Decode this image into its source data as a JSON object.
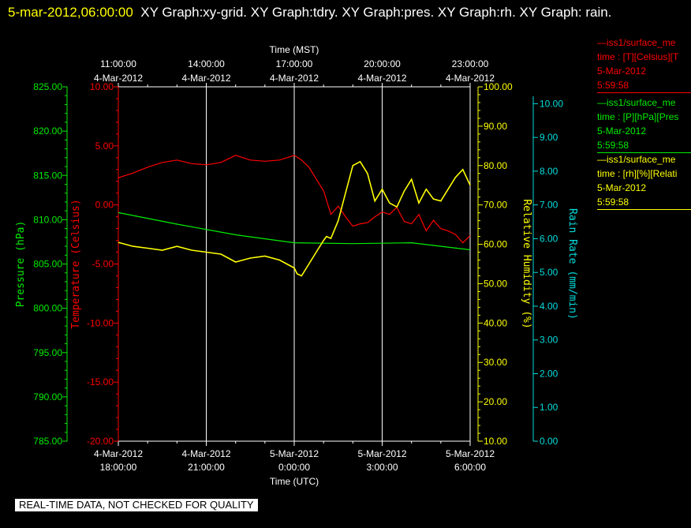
{
  "header": {
    "date_label": "5-mar-2012,06:00:00",
    "graph_list": "XY Graph:xy-grid.  XY Graph:tdry.  XY Graph:pres.  XY Graph:rh.  XY Graph: rain."
  },
  "footer": {
    "notice": "REAL-TIME DATA, NOT CHECKED FOR QUALITY"
  },
  "legend": [
    {
      "color": "#ff0000",
      "line1": "—iss1/surface_me",
      "line2": "time : [T][Celsius][T",
      "line3": "5-Mar-2012",
      "line4": "5:59:58"
    },
    {
      "color": "#00ee00",
      "line1": "—iss1/surface_me",
      "line2": "time : [P][hPa][Pres",
      "line3": "5-Mar-2012",
      "line4": "5:59:58"
    },
    {
      "color": "#ffff00",
      "line1": "—iss1/surface_me",
      "line2": "time : [rh][%][Relati",
      "line3": "5-Mar-2012",
      "line4": "5:59:58"
    }
  ],
  "chart_data": {
    "type": "line",
    "grid": true,
    "x_top": {
      "label": "Time (MST)",
      "ticks": [
        {
          "l1": "11:00:00",
          "l2": "4-Mar-2012"
        },
        {
          "l1": "14:00:00",
          "l2": "4-Mar-2012"
        },
        {
          "l1": "17:00:00",
          "l2": "4-Mar-2012"
        },
        {
          "l1": "20:00:00",
          "l2": "4-Mar-2012"
        },
        {
          "l1": "23:00:00",
          "l2": "4-Mar-2012"
        }
      ]
    },
    "x_bottom": {
      "label": "Time (UTC)",
      "range": [
        "2012-03-04 18:00",
        "2012-03-05 06:00"
      ],
      "ticks": [
        {
          "l1": "4-Mar-2012",
          "l2": "18:00:00"
        },
        {
          "l1": "4-Mar-2012",
          "l2": "21:00:00"
        },
        {
          "l1": "5-Mar-2012",
          "l2": "0:00:00"
        },
        {
          "l1": "5-Mar-2012",
          "l2": "3:00:00"
        },
        {
          "l1": "5-Mar-2012",
          "l2": "6:00:00"
        }
      ]
    },
    "axes": [
      {
        "id": "pres",
        "label": "Pressure (hPa)",
        "color": "#00ee00",
        "range": [
          785,
          825
        ],
        "ticks": [
          "785.00",
          "790.00",
          "795.00",
          "800.00",
          "805.00",
          "810.00",
          "815.00",
          "820.00",
          "825.00"
        ]
      },
      {
        "id": "tdry",
        "label": "Temperature (Celsius)",
        "color": "#ff0000",
        "range": [
          -20,
          10
        ],
        "ticks": [
          "-20.00",
          "-15.00",
          "-10.00",
          "-5.00",
          "0.00",
          "5.00",
          "10.00"
        ]
      },
      {
        "id": "rh",
        "label": "Relative Humidity (%)",
        "color": "#ffff00",
        "range": [
          10,
          100
        ],
        "ticks": [
          "10.00",
          "20.00",
          "30.00",
          "40.00",
          "50.00",
          "60.00",
          "70.00",
          "80.00",
          "90.00",
          "100.00"
        ]
      },
      {
        "id": "rain",
        "label": "Rain Rate (mm/min)",
        "color": "#00dddd",
        "range": [
          0,
          10.5
        ],
        "ticks": [
          "0.00",
          "1.00",
          "2.00",
          "3.00",
          "4.00",
          "5.00",
          "6.00",
          "7.00",
          "8.00",
          "9.00",
          "10.00"
        ]
      }
    ],
    "series": [
      {
        "axis": "pres",
        "color": "#00ee00",
        "x_hours_utc": [
          0,
          2,
          4,
          6,
          8,
          10,
          12
        ],
        "values": [
          810.8,
          809.5,
          808.3,
          807.4,
          807.3,
          807.4,
          806.6
        ]
      },
      {
        "axis": "tdry",
        "color": "#ff0000",
        "x_hours_utc": [
          0,
          0.5,
          1,
          1.5,
          2,
          2.5,
          3,
          3.5,
          4,
          4.5,
          5,
          5.5,
          6,
          6.25,
          6.5,
          7,
          7.25,
          7.5,
          7.75,
          8,
          8.25,
          8.5,
          8.75,
          9,
          9.25,
          9.5,
          9.75,
          10,
          10.25,
          10.5,
          10.75,
          11,
          11.25,
          11.5,
          11.75,
          12
        ],
        "values": [
          2.3,
          2.7,
          3.2,
          3.6,
          3.8,
          3.5,
          3.4,
          3.6,
          4.2,
          3.8,
          3.7,
          3.8,
          4.2,
          3.8,
          3.2,
          1.2,
          -0.8,
          -0.1,
          -1.0,
          -1.8,
          -1.6,
          -1.5,
          -1.0,
          -0.6,
          -0.8,
          -0.2,
          -1.4,
          -1.6,
          -0.8,
          -2.2,
          -1.3,
          -2.0,
          -2.2,
          -2.5,
          -3.2,
          -2.6
        ]
      },
      {
        "axis": "rh",
        "color": "#ffff00",
        "x_hours_utc": [
          0,
          0.5,
          1,
          1.5,
          2,
          2.5,
          3,
          3.5,
          4,
          4.5,
          5,
          5.5,
          5.75,
          6,
          6.1,
          6.25,
          6.5,
          6.75,
          7,
          7.1,
          7.25,
          7.5,
          7.75,
          8,
          8.25,
          8.5,
          8.75,
          9,
          9.25,
          9.5,
          9.75,
          10,
          10.25,
          10.5,
          10.75,
          11,
          11.25,
          11.5,
          11.75,
          12
        ],
        "values": [
          60.5,
          59.5,
          59.0,
          58.5,
          59.5,
          58.5,
          58.0,
          57.5,
          55.5,
          56.5,
          57.0,
          56.0,
          55.0,
          54.0,
          52.5,
          52.0,
          55.0,
          58.0,
          61.0,
          62.0,
          61.5,
          66.0,
          73.0,
          80.0,
          81.0,
          78.0,
          71.0,
          74.0,
          70.5,
          69.5,
          73.5,
          76.5,
          70.5,
          74.0,
          71.5,
          71.0,
          74.0,
          77.0,
          79.0,
          75.0
        ]
      }
    ]
  }
}
